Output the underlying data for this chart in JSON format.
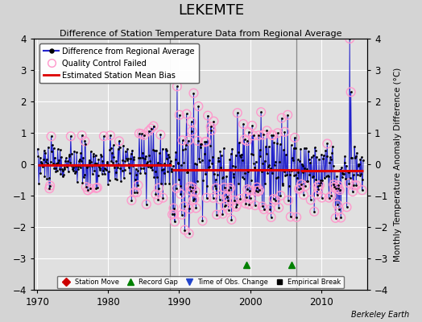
{
  "title": "LEKEMTE",
  "subtitle": "Difference of Station Temperature Data from Regional Average",
  "ylabel": "Monthly Temperature Anomaly Difference (°C)",
  "credit": "Berkeley Earth",
  "xlim": [
    1969.5,
    2016.5
  ],
  "ylim": [
    -4,
    4
  ],
  "yticks": [
    -4,
    -3,
    -2,
    -1,
    0,
    1,
    2,
    3,
    4
  ],
  "xticks": [
    1970,
    1980,
    1990,
    2000,
    2010
  ],
  "bg_color": "#d4d4d4",
  "plot_bg_color": "#e0e0e0",
  "grid_color": "#ffffff",
  "line_color": "#2222cc",
  "bias_color": "#dd0000",
  "qc_color": "#ff99cc",
  "vlines": [
    1988.75,
    2006.5
  ],
  "vline_color": "#888888",
  "record_gaps": [
    1999.5,
    2005.8
  ],
  "seg1_start": 1970,
  "seg1_end": 1988,
  "seg1_bias": -0.02,
  "seg2_start": 1989,
  "seg2_end": 2006,
  "seg2_bias": -0.18,
  "seg3_start": 2007,
  "seg3_end": 2015,
  "seg3_bias": -0.2
}
